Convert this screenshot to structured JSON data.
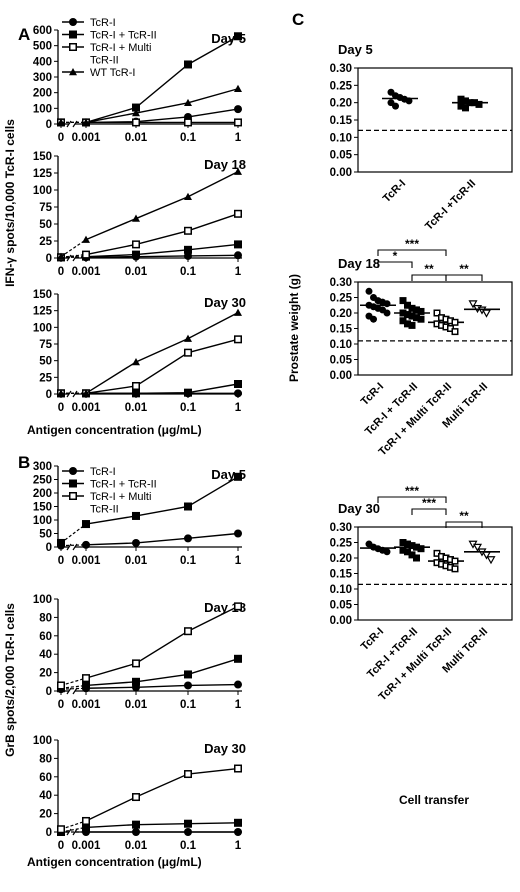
{
  "panels": {
    "A": "A",
    "B": "B",
    "C": "C"
  },
  "ylabel_A": "IFN-γ spots/10,000 TcR-I cells",
  "ylabel_B": "GrB spots/2,000 TcR-I cells",
  "ylabel_C": "Prostate weight (g)",
  "xlabel_AB": "Antigen concentration (μg/mL)",
  "xlabel_C": "Cell transfer",
  "legend_A": [
    "TcR-I",
    "TcR-I + TcR-II",
    "TcR-I + Multi",
    "TcR-II",
    "WT TcR-I"
  ],
  "legend_B": [
    "TcR-I",
    "TcR-I + TcR-II",
    "TcR-I + Multi",
    "TcR-II"
  ],
  "chart_data": [
    {
      "panel": "A",
      "type": "line",
      "title": "Day 5",
      "xlabel": "Antigen concentration (μg/mL)",
      "ylabel": "IFN-γ spots/10,000 TcR-I cells",
      "categories": [
        "0",
        "0.001",
        "0.01",
        "0.1",
        "1"
      ],
      "yticks": [
        "0",
        "100",
        "200",
        "300",
        "400",
        "500",
        "600"
      ],
      "ylim": [
        0,
        600
      ],
      "series": [
        {
          "name": "TcR-I",
          "marker": "circle",
          "values": [
            10,
            10,
            15,
            45,
            95
          ]
        },
        {
          "name": "TcR-I + TcR-II",
          "marker": "square-filled",
          "values": [
            10,
            10,
            105,
            380,
            560
          ]
        },
        {
          "name": "TcR-I + Multi TcR-II",
          "marker": "square-open",
          "values": [
            10,
            10,
            10,
            10,
            10
          ]
        },
        {
          "name": "WT TcR-I",
          "marker": "triangle",
          "values": [
            10,
            10,
            70,
            135,
            225
          ]
        }
      ]
    },
    {
      "panel": "A",
      "type": "line",
      "title": "Day 18",
      "categories": [
        "0",
        "0.001",
        "0.01",
        "0.1",
        "1"
      ],
      "yticks": [
        "0",
        "25",
        "50",
        "75",
        "100",
        "125",
        "150"
      ],
      "ylim": [
        0,
        150
      ],
      "series": [
        {
          "name": "TcR-I",
          "marker": "circle",
          "values": [
            1,
            1,
            2,
            3,
            4
          ]
        },
        {
          "name": "TcR-I + TcR-II",
          "marker": "square-filled",
          "values": [
            1,
            2,
            5,
            12,
            20
          ]
        },
        {
          "name": "TcR-I + Multi TcR-II",
          "marker": "square-open",
          "values": [
            1,
            5,
            20,
            40,
            65
          ]
        },
        {
          "name": "WT TcR-I",
          "marker": "triangle",
          "values": [
            2,
            27,
            58,
            90,
            127
          ]
        }
      ]
    },
    {
      "panel": "A",
      "type": "line",
      "title": "Day 30",
      "categories": [
        "0",
        "0.001",
        "0.01",
        "0.1",
        "1"
      ],
      "yticks": [
        "0",
        "25",
        "50",
        "75",
        "100",
        "125",
        "150"
      ],
      "ylim": [
        0,
        150
      ],
      "series": [
        {
          "name": "TcR-I",
          "marker": "circle",
          "values": [
            1,
            1,
            1,
            1,
            1
          ]
        },
        {
          "name": "TcR-I + TcR-II",
          "marker": "square-filled",
          "values": [
            1,
            1,
            1,
            2,
            15
          ]
        },
        {
          "name": "TcR-I + Multi TcR-II",
          "marker": "square-open",
          "values": [
            1,
            1,
            12,
            62,
            82
          ]
        },
        {
          "name": "WT TcR-I",
          "marker": "triangle",
          "values": [
            1,
            1,
            48,
            83,
            122
          ]
        }
      ]
    },
    {
      "panel": "B",
      "type": "line",
      "title": "Day 5",
      "xlabel": "Antigen concentration (μg/mL)",
      "ylabel": "GrB spots/2,000 TcR-I cells",
      "categories": [
        "0",
        "0.001",
        "0.01",
        "0.1",
        "1"
      ],
      "yticks": [
        "0",
        "50",
        "100",
        "150",
        "200",
        "250",
        "300"
      ],
      "ylim": [
        0,
        300
      ],
      "series": [
        {
          "name": "TcR-I",
          "marker": "circle",
          "values": [
            5,
            8,
            15,
            32,
            50
          ]
        },
        {
          "name": "TcR-I + TcR-II",
          "marker": "square-filled",
          "values": [
            15,
            85,
            115,
            150,
            260
          ]
        },
        {
          "name": "TcR-I + Multi TcR-II",
          "marker": "square-open",
          "values": [
            null,
            null,
            null,
            null,
            null
          ]
        }
      ]
    },
    {
      "panel": "B",
      "type": "line",
      "title": "Day 18",
      "categories": [
        "0",
        "0.001",
        "0.01",
        "0.1",
        "1"
      ],
      "yticks": [
        "0",
        "20",
        "40",
        "60",
        "80",
        "100"
      ],
      "ylim": [
        0,
        100
      ],
      "series": [
        {
          "name": "TcR-I",
          "marker": "circle",
          "values": [
            2,
            3,
            4,
            6,
            7
          ]
        },
        {
          "name": "TcR-I + TcR-II",
          "marker": "square-filled",
          "values": [
            3,
            6,
            10,
            18,
            35
          ]
        },
        {
          "name": "TcR-I + Multi TcR-II",
          "marker": "square-open",
          "values": [
            6,
            14,
            30,
            65,
            92
          ]
        }
      ]
    },
    {
      "panel": "B",
      "type": "line",
      "title": "Day 30",
      "categories": [
        "0",
        "0.001",
        "0.01",
        "0.1",
        "1"
      ],
      "yticks": [
        "0",
        "20",
        "40",
        "60",
        "80",
        "100"
      ],
      "ylim": [
        0,
        100
      ],
      "series": [
        {
          "name": "TcR-I",
          "marker": "circle",
          "values": [
            0,
            0,
            0,
            0,
            0
          ]
        },
        {
          "name": "TcR-I + TcR-II",
          "marker": "square-filled",
          "values": [
            0,
            5,
            8,
            9,
            10
          ]
        },
        {
          "name": "TcR-I + Multi TcR-II",
          "marker": "square-open",
          "values": [
            3,
            12,
            38,
            63,
            69
          ]
        }
      ]
    },
    {
      "panel": "C",
      "type": "scatter",
      "title": "Day 5",
      "ylabel": "Prostate weight (g)",
      "categories": [
        "TcR-I",
        "TcR-I +TcR-II"
      ],
      "yticks": [
        "0.00",
        "0.05",
        "0.10",
        "0.15",
        "0.20",
        "0.25",
        "0.30"
      ],
      "ylim": [
        0,
        0.3
      ],
      "reference_line": 0.12,
      "series": [
        {
          "marker": "circle",
          "points": [
            0.23,
            0.22,
            0.215,
            0.21,
            0.205,
            0.2,
            0.19
          ],
          "mean": 0.212
        },
        {
          "marker": "square",
          "points": [
            0.21,
            0.205,
            0.2,
            0.2,
            0.195,
            0.19,
            0.185
          ],
          "mean": 0.2
        }
      ],
      "significance": []
    },
    {
      "panel": "C",
      "type": "scatter",
      "title": "Day 18",
      "ylabel": "Prostate weight (g)",
      "categories": [
        "TcR-I",
        "TcR-I + TcR-II",
        "TcR-I + Multi TcR-II",
        "Multi TcR-II"
      ],
      "yticks": [
        "0.00",
        "0.05",
        "0.10",
        "0.15",
        "0.20",
        "0.25",
        "0.30"
      ],
      "ylim": [
        0,
        0.3
      ],
      "reference_line": 0.11,
      "series": [
        {
          "marker": "circle",
          "points": [
            0.27,
            0.25,
            0.24,
            0.235,
            0.23,
            0.225,
            0.22,
            0.215,
            0.21,
            0.2,
            0.19,
            0.18
          ],
          "mean": 0.225
        },
        {
          "marker": "square",
          "points": [
            0.24,
            0.225,
            0.215,
            0.21,
            0.205,
            0.2,
            0.195,
            0.19,
            0.185,
            0.18,
            0.175,
            0.165,
            0.16
          ],
          "mean": 0.2
        },
        {
          "marker": "square-open",
          "points": [
            0.2,
            0.185,
            0.18,
            0.175,
            0.17,
            0.165,
            0.16,
            0.155,
            0.15,
            0.14
          ],
          "mean": 0.17
        },
        {
          "marker": "triangle-down",
          "points": [
            0.23,
            0.215,
            0.21,
            0.2
          ],
          "mean": 0.212
        }
      ],
      "significance": [
        {
          "from": 0,
          "to": 2,
          "label": "***"
        },
        {
          "from": 0,
          "to": 1,
          "label": "*"
        },
        {
          "from": 1,
          "to": 2,
          "label": "**"
        },
        {
          "from": 2,
          "to": 3,
          "label": "**"
        }
      ]
    },
    {
      "panel": "C",
      "type": "scatter",
      "title": "Day 30",
      "ylabel": "Prostate weight (g)",
      "xlabel": "Cell transfer",
      "categories": [
        "TcR-I",
        "TcR-I +TcR-II",
        "TcR-I + Multi TcR-II",
        "Multi TcR-II"
      ],
      "yticks": [
        "0.00",
        "0.05",
        "0.10",
        "0.15",
        "0.20",
        "0.25",
        "0.30"
      ],
      "ylim": [
        0,
        0.3
      ],
      "reference_line": 0.115,
      "series": [
        {
          "marker": "circle",
          "points": [
            0.245,
            0.235,
            0.23,
            0.225,
            0.22
          ],
          "mean": 0.232
        },
        {
          "marker": "square",
          "points": [
            0.25,
            0.245,
            0.24,
            0.235,
            0.23,
            0.225,
            0.22,
            0.21,
            0.2
          ],
          "mean": 0.235
        },
        {
          "marker": "square-open",
          "points": [
            0.215,
            0.205,
            0.2,
            0.195,
            0.19,
            0.185,
            0.18,
            0.175,
            0.17,
            0.165
          ],
          "mean": 0.19
        },
        {
          "marker": "triangle-down",
          "points": [
            0.245,
            0.235,
            0.22,
            0.21,
            0.195
          ],
          "mean": 0.22
        }
      ],
      "significance": [
        {
          "from": 0,
          "to": 2,
          "label": "***"
        },
        {
          "from": 1,
          "to": 2,
          "label": "***"
        },
        {
          "from": 2,
          "to": 3,
          "label": "**"
        }
      ]
    }
  ]
}
